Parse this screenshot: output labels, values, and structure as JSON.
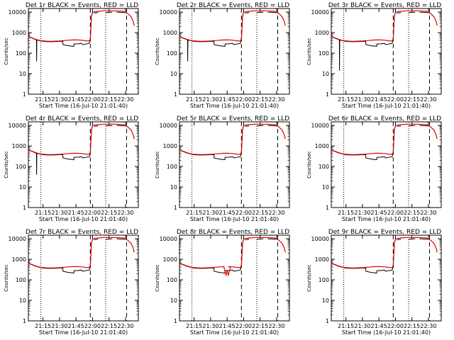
{
  "colors": {
    "events": "#000000",
    "lld": "#e00000",
    "background": "#ffffff"
  },
  "shared": {
    "xlabel": "Start Time (16-Jul-10 21:01:40)",
    "ylabel": "Counts/sec",
    "xticks": [
      "21:15",
      "21:30",
      "21:45",
      "22:00",
      "22:15",
      "22:30"
    ],
    "yticks": [
      "1",
      "10",
      "100",
      "1000",
      "10000"
    ],
    "xlim": [
      "21:01:40",
      "22:41:40"
    ],
    "ylim": [
      1,
      15000
    ],
    "yscale": "log",
    "vlines": {
      "dotted": [
        "21:13",
        "22:12"
      ],
      "dashed": [
        "21:58",
        "22:31"
      ]
    }
  },
  "chart_data": [
    {
      "type": "line",
      "title": "Det 1r BLACK = Events, RED = LLD",
      "anomaly": "dip_21_09"
    },
    {
      "type": "line",
      "title": "Det 2r BLACK = Events, RED = LLD",
      "anomaly": "dip_21_09"
    },
    {
      "type": "line",
      "title": "Det 3r BLACK = Events, RED = LLD",
      "anomaly": "dip_21_09_deep"
    },
    {
      "type": "line",
      "title": "Det 4r BLACK = Events, RED = LLD",
      "anomaly": "dip_21_09"
    },
    {
      "type": "line",
      "title": "Det 5r BLACK = Events, RED = LLD",
      "anomaly": "none"
    },
    {
      "type": "line",
      "title": "Det 6r BLACK = Events, RED = LLD",
      "anomaly": "none"
    },
    {
      "type": "line",
      "title": "Det 7r BLACK = Events, RED = LLD",
      "anomaly": "none"
    },
    {
      "type": "line",
      "title": "Det 8r BLACK = Events, RED = LLD",
      "anomaly": "red_spikes_21_45"
    },
    {
      "type": "line",
      "title": "Det 9r BLACK = Events, RED = LLD",
      "anomaly": "none"
    }
  ]
}
